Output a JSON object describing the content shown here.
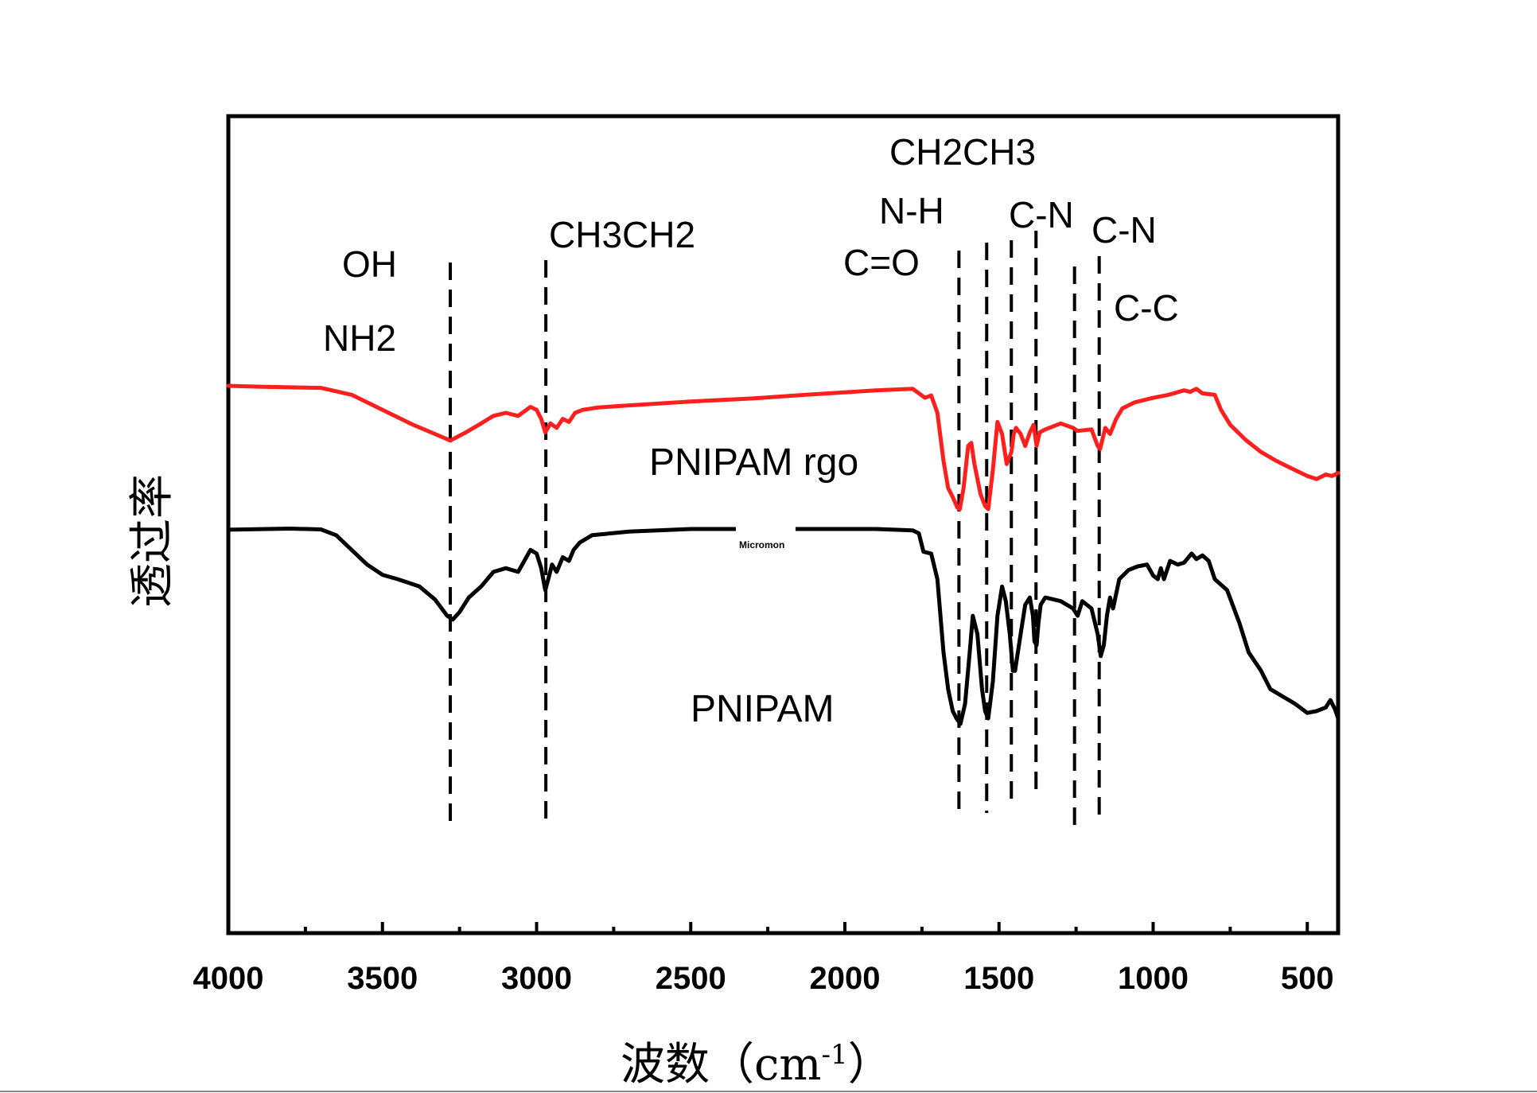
{
  "chart_data": {
    "type": "line",
    "xlabel": "波数（cm",
    "xlabel_sup": "-1",
    "xlabel_close": "）",
    "ylabel": "透过率",
    "xlim": [
      4000,
      400
    ],
    "x_reversed": true,
    "xticks": [
      4000,
      3500,
      3000,
      2500,
      2000,
      1500,
      1000,
      500
    ],
    "grid": false,
    "y_ticks_shown": false,
    "watermark": "Micromon",
    "series": [
      {
        "label": "PNIPAM rgo",
        "color": "#ff1f1f",
        "x": [
          4000,
          3900,
          3800,
          3700,
          3600,
          3500,
          3400,
          3330,
          3280,
          3230,
          3180,
          3140,
          3100,
          3060,
          3020,
          3000,
          2985,
          2972,
          2955,
          2935,
          2915,
          2895,
          2875,
          2850,
          2800,
          2700,
          2500,
          2300,
          2100,
          1900,
          1780,
          1740,
          1720,
          1700,
          1680,
          1665,
          1650,
          1635,
          1627,
          1615,
          1600,
          1590,
          1580,
          1560,
          1545,
          1535,
          1520,
          1505,
          1490,
          1475,
          1460,
          1452,
          1445,
          1430,
          1415,
          1400,
          1388,
          1378,
          1368,
          1350,
          1300,
          1260,
          1245,
          1200,
          1180,
          1172,
          1165,
          1155,
          1140,
          1120,
          1100,
          1060,
          1000,
          950,
          900,
          880,
          860,
          840,
          800,
          780,
          750,
          700,
          650,
          600,
          560,
          500,
          470,
          440,
          420,
          400
        ],
        "y": [
          0.9,
          0.897,
          0.895,
          0.893,
          0.87,
          0.82,
          0.77,
          0.74,
          0.718,
          0.745,
          0.775,
          0.8,
          0.81,
          0.8,
          0.83,
          0.82,
          0.79,
          0.745,
          0.775,
          0.76,
          0.79,
          0.78,
          0.81,
          0.82,
          0.828,
          0.835,
          0.848,
          0.858,
          0.872,
          0.885,
          0.89,
          0.86,
          0.868,
          0.81,
          0.65,
          0.56,
          0.53,
          0.495,
          0.49,
          0.56,
          0.7,
          0.71,
          0.64,
          0.54,
          0.5,
          0.49,
          0.62,
          0.78,
          0.74,
          0.64,
          0.68,
          0.74,
          0.76,
          0.74,
          0.7,
          0.745,
          0.77,
          0.7,
          0.745,
          0.755,
          0.775,
          0.76,
          0.75,
          0.755,
          0.7,
          0.69,
          0.72,
          0.76,
          0.74,
          0.79,
          0.825,
          0.845,
          0.86,
          0.87,
          0.885,
          0.88,
          0.89,
          0.875,
          0.87,
          0.82,
          0.77,
          0.72,
          0.68,
          0.65,
          0.63,
          0.6,
          0.59,
          0.605,
          0.6,
          0.61
        ]
      },
      {
        "label": "PNIPAM",
        "color": "#000000",
        "x": [
          4000,
          3800,
          3700,
          3650,
          3600,
          3550,
          3500,
          3450,
          3380,
          3330,
          3290,
          3272,
          3250,
          3220,
          3180,
          3140,
          3100,
          3060,
          3020,
          3000,
          2985,
          2972,
          2962,
          2950,
          2935,
          2915,
          2895,
          2880,
          2860,
          2820,
          2700,
          2500,
          2300,
          2100,
          1900,
          1780,
          1760,
          1745,
          1720,
          1700,
          1680,
          1665,
          1650,
          1638,
          1625,
          1610,
          1595,
          1585,
          1570,
          1555,
          1545,
          1535,
          1520,
          1505,
          1490,
          1478,
          1465,
          1455,
          1448,
          1430,
          1415,
          1400,
          1390,
          1385,
          1378,
          1372,
          1365,
          1350,
          1300,
          1260,
          1245,
          1230,
          1200,
          1180,
          1170,
          1160,
          1150,
          1140,
          1130,
          1110,
          1080,
          1050,
          1020,
          1000,
          985,
          975,
          965,
          945,
          920,
          900,
          875,
          860,
          840,
          820,
          800,
          760,
          720,
          690,
          650,
          620,
          580,
          540,
          500,
          470,
          440,
          425,
          410,
          400
        ],
        "y": [
          0.435,
          0.438,
          0.436,
          0.42,
          0.38,
          0.34,
          0.312,
          0.3,
          0.28,
          0.245,
          0.2,
          0.19,
          0.21,
          0.25,
          0.28,
          0.32,
          0.33,
          0.32,
          0.38,
          0.37,
          0.33,
          0.27,
          0.3,
          0.34,
          0.32,
          0.36,
          0.35,
          0.38,
          0.4,
          0.42,
          0.43,
          0.437,
          0.437,
          0.437,
          0.437,
          0.433,
          0.425,
          0.375,
          0.37,
          0.3,
          0.1,
          0.0,
          -0.06,
          -0.08,
          -0.095,
          -0.04,
          0.1,
          0.2,
          0.15,
          0.0,
          -0.06,
          -0.08,
          0.02,
          0.2,
          0.28,
          0.24,
          0.15,
          0.05,
          0.05,
          0.15,
          0.23,
          0.25,
          0.2,
          0.13,
          0.12,
          0.18,
          0.23,
          0.25,
          0.24,
          0.22,
          0.2,
          0.24,
          0.22,
          0.15,
          0.09,
          0.12,
          0.2,
          0.25,
          0.22,
          0.3,
          0.325,
          0.335,
          0.34,
          0.31,
          0.3,
          0.33,
          0.3,
          0.35,
          0.34,
          0.345,
          0.37,
          0.355,
          0.365,
          0.35,
          0.3,
          0.27,
          0.18,
          0.1,
          0.05,
          0.0,
          -0.02,
          -0.04,
          -0.065,
          -0.06,
          -0.05,
          -0.03,
          -0.055,
          -0.08
        ]
      }
    ],
    "vlines": [
      3280,
      2970,
      1630,
      1540,
      1460,
      1380,
      1255,
      1175
    ],
    "annotations": [
      "OH",
      "NH2",
      "CH3CH2",
      "C=O",
      "N-H",
      "CH2CH3",
      "C-N",
      "C-N",
      "C-C"
    ]
  }
}
